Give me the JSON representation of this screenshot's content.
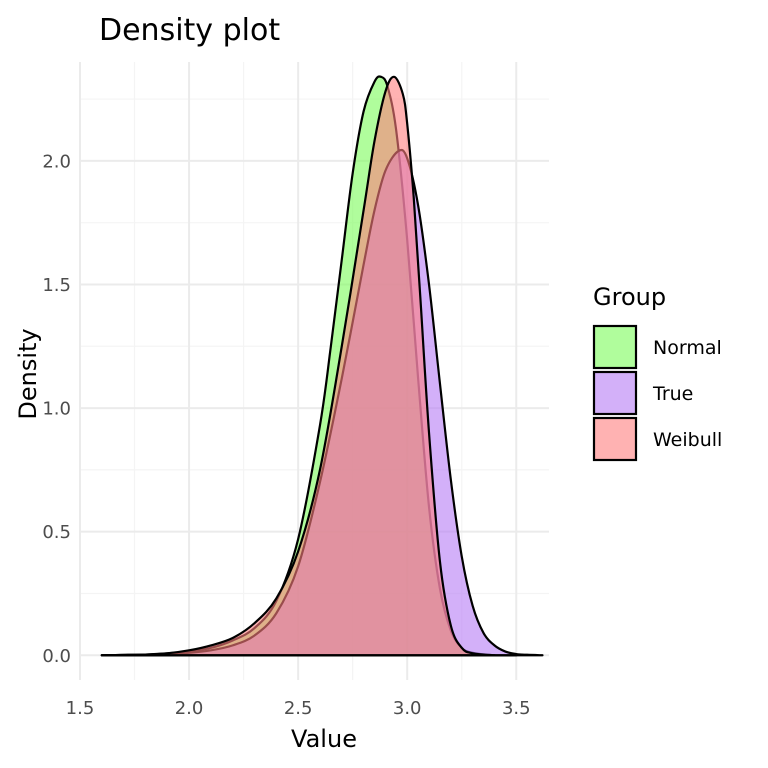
{
  "chart_data": {
    "type": "area",
    "title": "Density plot",
    "xlabel": "Value",
    "ylabel": "Density",
    "xlim": [
      1.5,
      3.65
    ],
    "ylim": [
      -0.1,
      2.4
    ],
    "x_ticks": [
      1.5,
      2.0,
      2.5,
      3.0,
      3.5
    ],
    "x_tick_labels": [
      "1.5",
      "2.0",
      "2.5",
      "3.0",
      "3.5"
    ],
    "y_ticks": [
      0.0,
      0.5,
      1.0,
      1.5,
      2.0
    ],
    "y_tick_labels": [
      "0.0",
      "0.5",
      "1.0",
      "1.5",
      "2.0"
    ],
    "grid": true,
    "legend": {
      "title": "Group",
      "position": "right"
    },
    "series": [
      {
        "name": "Normal",
        "color": "#7CFC5A",
        "x": [
          1.6,
          1.8,
          1.9,
          2.0,
          2.1,
          2.2,
          2.3,
          2.4,
          2.5,
          2.6,
          2.65,
          2.7,
          2.75,
          2.8,
          2.85,
          2.88,
          2.91,
          2.95,
          3.0,
          3.05,
          3.1,
          3.15,
          3.2,
          3.25,
          3.3,
          3.4,
          3.5
        ],
        "y": [
          0.0,
          0.003,
          0.008,
          0.015,
          0.03,
          0.06,
          0.11,
          0.22,
          0.47,
          0.93,
          1.25,
          1.6,
          1.95,
          2.2,
          2.32,
          2.34,
          2.3,
          2.12,
          1.68,
          1.12,
          0.6,
          0.27,
          0.1,
          0.03,
          0.01,
          0.0,
          0.0
        ]
      },
      {
        "name": "True",
        "color": "#B57CF5",
        "x": [
          1.6,
          1.8,
          1.9,
          2.0,
          2.1,
          2.2,
          2.3,
          2.4,
          2.5,
          2.6,
          2.7,
          2.8,
          2.85,
          2.9,
          2.96,
          3.0,
          3.05,
          3.1,
          3.15,
          3.2,
          3.25,
          3.3,
          3.35,
          3.4,
          3.45,
          3.5,
          3.55,
          3.62
        ],
        "y": [
          0.0,
          0.002,
          0.005,
          0.01,
          0.02,
          0.04,
          0.08,
          0.17,
          0.36,
          0.7,
          1.12,
          1.58,
          1.8,
          1.96,
          2.04,
          2.01,
          1.82,
          1.5,
          1.1,
          0.71,
          0.4,
          0.2,
          0.09,
          0.04,
          0.015,
          0.005,
          0.002,
          0.0
        ]
      },
      {
        "name": "Weibull",
        "color": "#FF7F7F",
        "x": [
          1.6,
          1.8,
          1.9,
          2.0,
          2.1,
          2.2,
          2.3,
          2.4,
          2.5,
          2.6,
          2.7,
          2.8,
          2.85,
          2.9,
          2.94,
          2.98,
          3.0,
          3.03,
          3.06,
          3.1,
          3.15,
          3.2,
          3.25,
          3.3,
          3.4
        ],
        "y": [
          0.0,
          0.003,
          0.008,
          0.02,
          0.04,
          0.07,
          0.13,
          0.23,
          0.42,
          0.75,
          1.25,
          1.8,
          2.08,
          2.28,
          2.34,
          2.27,
          2.15,
          1.85,
          1.45,
          0.9,
          0.38,
          0.12,
          0.03,
          0.008,
          0.0
        ]
      }
    ]
  }
}
